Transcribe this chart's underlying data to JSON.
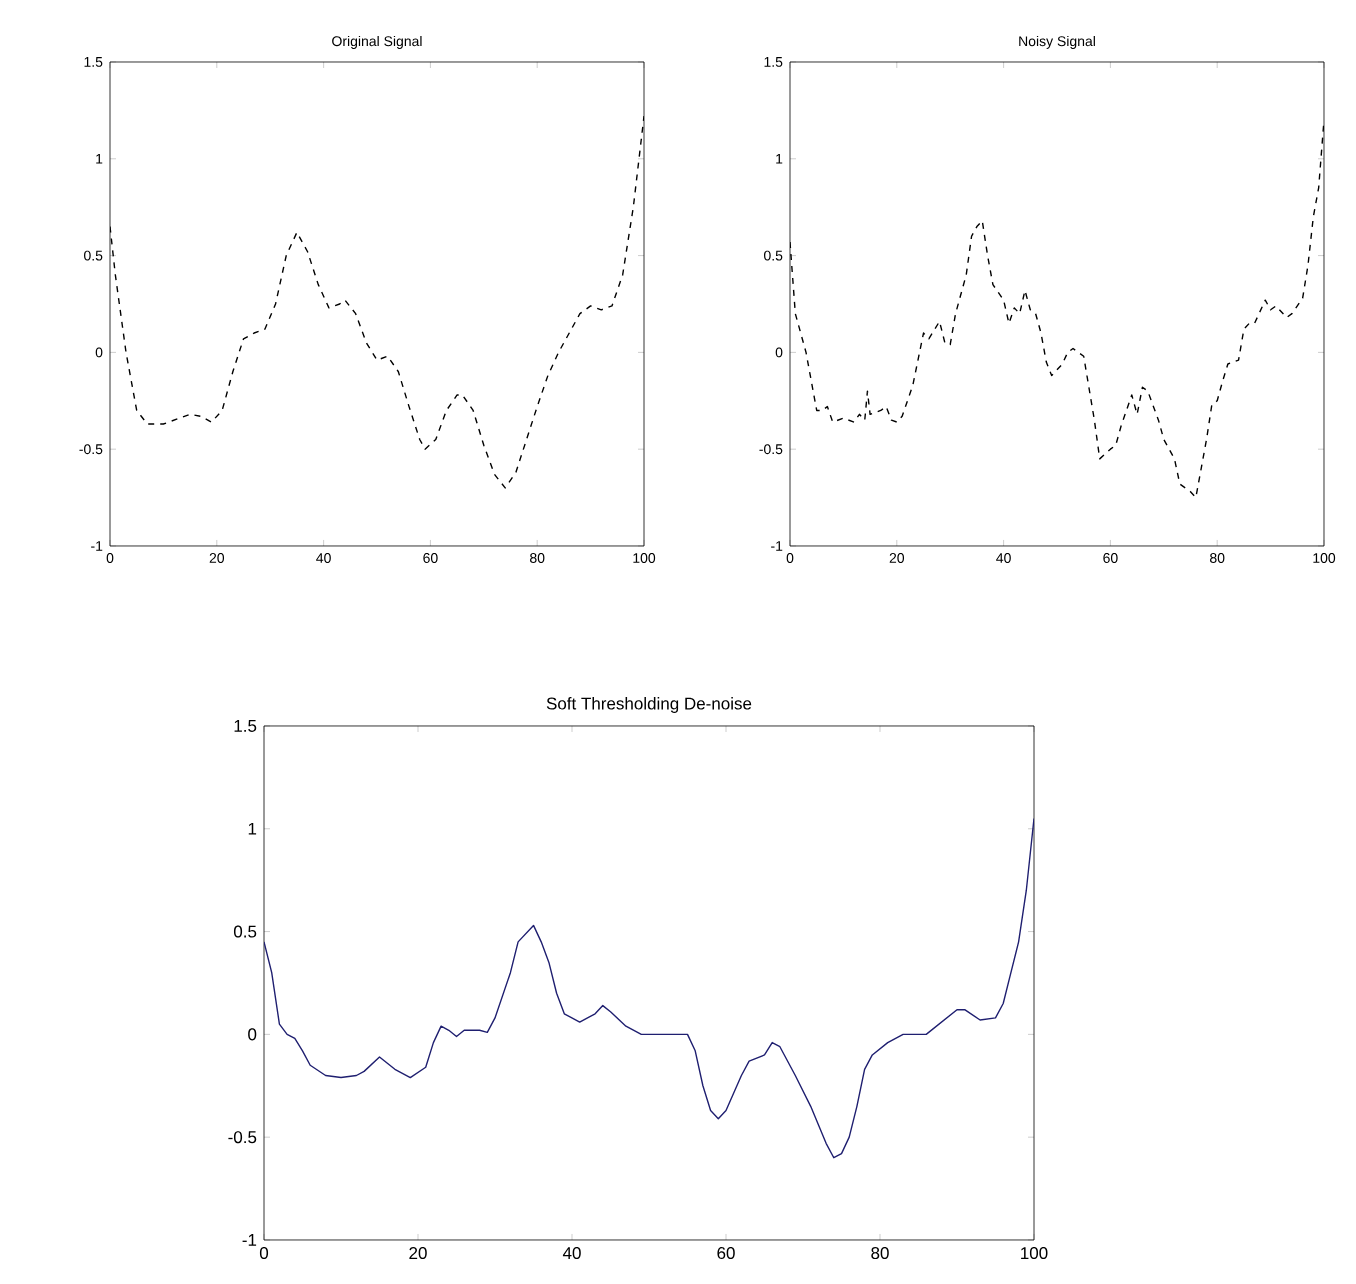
{
  "chart_data": [
    {
      "type": "line",
      "title": "Original Signal",
      "xlim": [
        0,
        100
      ],
      "xticks": [
        0,
        20,
        40,
        60,
        80,
        100
      ],
      "ylim": [
        -1,
        1.5
      ],
      "yticks": [
        -1,
        -0.5,
        0,
        0.5,
        1,
        1.5
      ],
      "line_style": "dashed",
      "series": [
        {
          "color": "#000000",
          "x": [
            0,
            1,
            3,
            5,
            7,
            10,
            13,
            15,
            17,
            19,
            21,
            23,
            25,
            27,
            29,
            31,
            33,
            35,
            37,
            39,
            41,
            43,
            44,
            46,
            48,
            50,
            52,
            54,
            56,
            58,
            59,
            61,
            63,
            65,
            66,
            68,
            70,
            72,
            74,
            76,
            78,
            80,
            82,
            84,
            86,
            88,
            90,
            92,
            94,
            96,
            98,
            100
          ],
          "values": [
            0.65,
            0.4,
            0,
            -0.3,
            -0.37,
            -0.37,
            -0.34,
            -0.32,
            -0.33,
            -0.36,
            -0.3,
            -0.1,
            0.07,
            0.1,
            0.12,
            0.25,
            0.5,
            0.62,
            0.52,
            0.35,
            0.23,
            0.25,
            0.27,
            0.2,
            0.05,
            -0.04,
            -0.02,
            -0.1,
            -0.28,
            -0.45,
            -0.5,
            -0.45,
            -0.3,
            -0.22,
            -0.22,
            -0.3,
            -0.48,
            -0.63,
            -0.7,
            -0.62,
            -0.45,
            -0.28,
            -0.12,
            0,
            0.1,
            0.2,
            0.24,
            0.22,
            0.24,
            0.4,
            0.75,
            1.22
          ]
        }
      ]
    },
    {
      "type": "line",
      "title": "Noisy Signal",
      "xlim": [
        0,
        100
      ],
      "xticks": [
        0,
        20,
        40,
        60,
        80,
        100
      ],
      "ylim": [
        -1,
        1.5
      ],
      "yticks": [
        -1,
        -0.5,
        0,
        0.5,
        1,
        1.5
      ],
      "line_style": "dashed",
      "series": [
        {
          "color": "#000000",
          "x": [
            0,
            1,
            3,
            5,
            6,
            7,
            8,
            10,
            12,
            13,
            14,
            14.5,
            15,
            17,
            18,
            19,
            20,
            21,
            23,
            25,
            26,
            28,
            29,
            30,
            31,
            33,
            34,
            35,
            36,
            37,
            38,
            40,
            41,
            42,
            43,
            44,
            45,
            46,
            47,
            48,
            49,
            51,
            52,
            53,
            55,
            57,
            58,
            60,
            61,
            62,
            63,
            64,
            65,
            66,
            67,
            69,
            70,
            72,
            73,
            75,
            76,
            77,
            78,
            79,
            80,
            81,
            82,
            84,
            85,
            86,
            87,
            89,
            90,
            91,
            93,
            94,
            96,
            97,
            98,
            99,
            100
          ],
          "values": [
            0.57,
            0.2,
            0,
            -0.3,
            -0.3,
            -0.28,
            -0.36,
            -0.34,
            -0.36,
            -0.32,
            -0.35,
            -0.2,
            -0.32,
            -0.3,
            -0.28,
            -0.35,
            -0.36,
            -0.33,
            -0.17,
            0.1,
            0.07,
            0.16,
            0.05,
            0.04,
            0.2,
            0.4,
            0.6,
            0.65,
            0.68,
            0.5,
            0.35,
            0.27,
            0.15,
            0.23,
            0.2,
            0.32,
            0.22,
            0.2,
            0.1,
            -0.05,
            -0.12,
            -0.06,
            0,
            0.02,
            -0.02,
            -0.35,
            -0.55,
            -0.5,
            -0.48,
            -0.38,
            -0.3,
            -0.22,
            -0.32,
            -0.18,
            -0.2,
            -0.35,
            -0.45,
            -0.55,
            -0.68,
            -0.72,
            -0.75,
            -0.6,
            -0.45,
            -0.27,
            -0.25,
            -0.15,
            -0.06,
            -0.04,
            0.12,
            0.15,
            0.15,
            0.27,
            0.22,
            0.24,
            0.18,
            0.2,
            0.28,
            0.45,
            0.7,
            0.85,
            1.2
          ]
        }
      ]
    },
    {
      "type": "line",
      "title": "Soft Thresholding De-noise",
      "xlim": [
        0,
        100
      ],
      "xticks": [
        0,
        20,
        40,
        60,
        80,
        100
      ],
      "ylim": [
        -1,
        1.5
      ],
      "yticks": [
        -1,
        -0.5,
        0,
        0.5,
        1,
        1.5
      ],
      "line_style": "solid",
      "series": [
        {
          "color": "#1f1f70",
          "x": [
            0,
            1,
            2,
            3,
            4,
            5,
            6,
            8,
            10,
            12,
            13,
            15,
            17,
            19,
            21,
            22,
            23,
            24,
            25,
            26,
            27,
            28,
            29,
            30,
            32,
            33,
            35,
            36,
            37,
            38,
            39,
            41,
            43,
            44,
            45,
            47,
            49,
            52,
            55,
            56,
            57,
            58,
            59,
            60,
            62,
            63,
            65,
            66,
            67,
            69,
            71,
            73,
            74,
            75,
            76,
            77,
            78,
            79,
            81,
            83,
            85,
            86,
            88,
            90,
            91,
            93,
            95,
            96,
            97,
            98,
            99,
            100
          ],
          "values": [
            0.45,
            0.3,
            0.05,
            0,
            -0.02,
            -0.08,
            -0.15,
            -0.2,
            -0.21,
            -0.2,
            -0.18,
            -0.11,
            -0.17,
            -0.21,
            -0.16,
            -0.04,
            0.04,
            0.02,
            -0.01,
            0.02,
            0.02,
            0.02,
            0.01,
            0.08,
            0.3,
            0.45,
            0.53,
            0.45,
            0.35,
            0.2,
            0.1,
            0.06,
            0.1,
            0.14,
            0.11,
            0.04,
            0,
            0,
            0,
            -0.08,
            -0.25,
            -0.37,
            -0.41,
            -0.37,
            -0.2,
            -0.13,
            -0.1,
            -0.04,
            -0.06,
            -0.2,
            -0.35,
            -0.53,
            -0.6,
            -0.58,
            -0.5,
            -0.35,
            -0.17,
            -0.1,
            -0.04,
            0,
            0,
            0,
            0.06,
            0.12,
            0.12,
            0.07,
            0.08,
            0.15,
            0.3,
            0.45,
            0.7,
            1.05
          ]
        }
      ]
    }
  ]
}
